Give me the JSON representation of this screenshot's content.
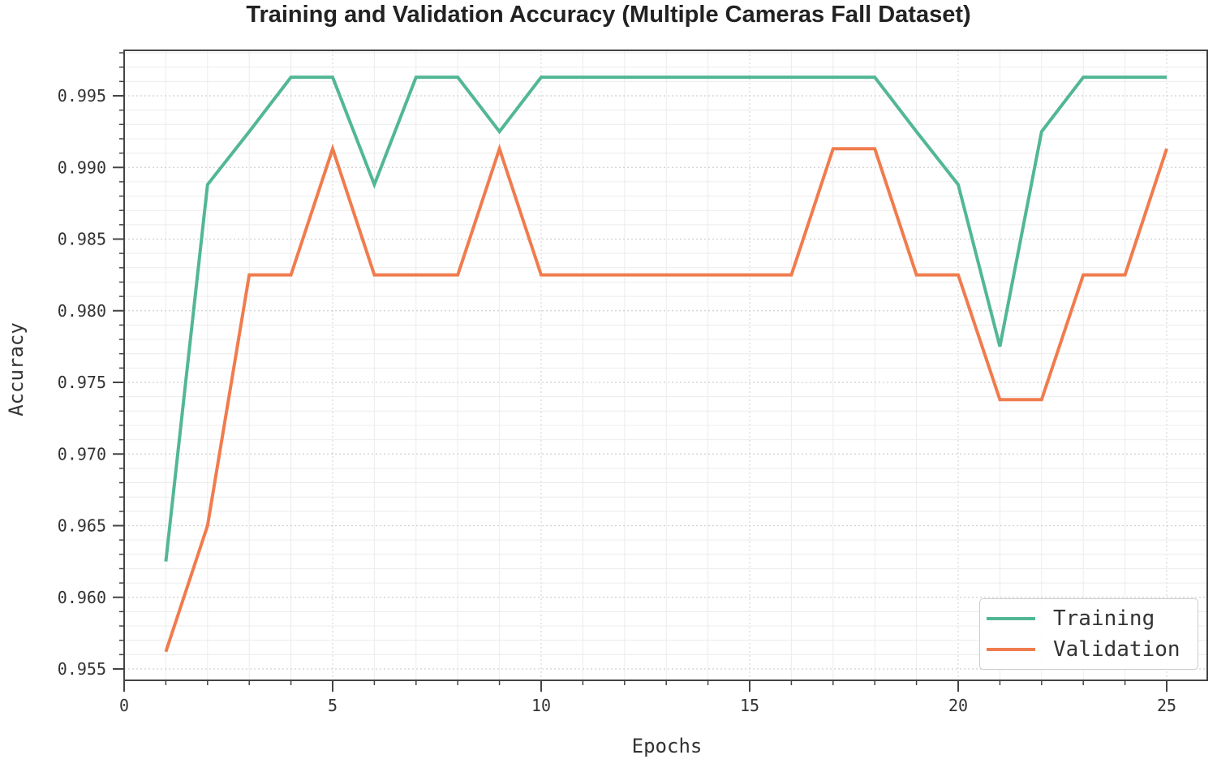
{
  "chart_data": {
    "type": "line",
    "title": "Training and Validation Accuracy (Multiple Cameras Fall Dataset)",
    "xlabel": "Epochs",
    "ylabel": "Accuracy",
    "x": [
      1,
      2,
      3,
      4,
      5,
      6,
      7,
      8,
      9,
      10,
      11,
      12,
      13,
      14,
      15,
      16,
      17,
      18,
      19,
      20,
      21,
      22,
      23,
      24,
      25
    ],
    "series": [
      {
        "name": "Training",
        "color": "#52b795",
        "values": [
          0.9625,
          0.9888,
          0.9925,
          0.9963,
          0.9963,
          0.9888,
          0.9963,
          0.9963,
          0.9925,
          0.9963,
          0.9963,
          0.9963,
          0.9963,
          0.9963,
          0.9963,
          0.9963,
          0.9963,
          0.9963,
          0.9925,
          0.9888,
          0.9775,
          0.9925,
          0.9963,
          0.9963,
          0.9963
        ]
      },
      {
        "name": "Validation",
        "color": "#f07c4e",
        "values": [
          0.9562,
          0.965,
          0.9825,
          0.9825,
          0.9913,
          0.9825,
          0.9825,
          0.9825,
          0.9913,
          0.9825,
          0.9825,
          0.9825,
          0.9825,
          0.9825,
          0.9825,
          0.9825,
          0.9913,
          0.9913,
          0.9825,
          0.9825,
          0.9738,
          0.9738,
          0.9825,
          0.9825,
          0.9913
        ]
      }
    ],
    "xlim": [
      0,
      26.2
    ],
    "ylim": [
      0.9542,
      0.9977
    ],
    "xticks": [
      0,
      5,
      10,
      15,
      20,
      25
    ],
    "xtick_labels": [
      "0",
      "5",
      "10",
      "15",
      "20",
      "25"
    ],
    "yticks": [
      0.955,
      0.96,
      0.965,
      0.97,
      0.975,
      0.98,
      0.985,
      0.99,
      0.995
    ],
    "ytick_labels": [
      "0.955",
      "0.960",
      "0.965",
      "0.970",
      "0.975",
      "0.980",
      "0.985",
      "0.990",
      "0.995"
    ],
    "grid": true,
    "legend_position": "lower right"
  }
}
